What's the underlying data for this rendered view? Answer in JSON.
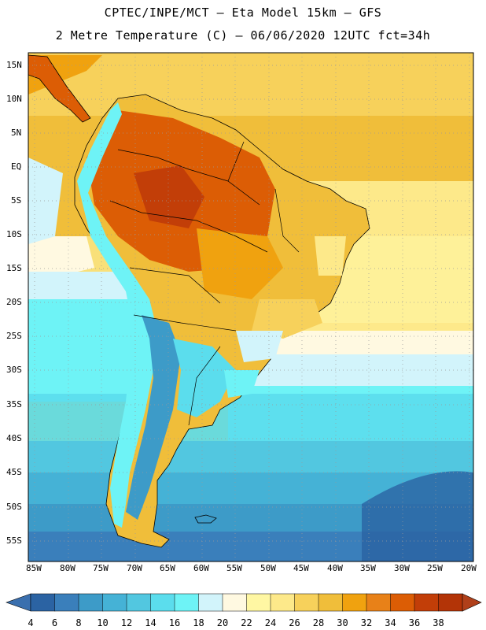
{
  "header": {
    "title_line1": "CPTEC/INPE/MCT –  Eta Model 15km – GFS",
    "title_line2": "2 Metre Temperature (C) – 06/06/2020 12UTC fct=34h"
  },
  "axes": {
    "lat_labels": [
      "15N",
      "10N",
      "5N",
      "EQ",
      "5S",
      "10S",
      "15S",
      "20S",
      "25S",
      "30S",
      "35S",
      "40S",
      "45S",
      "50S",
      "55S"
    ],
    "lon_labels": [
      "85W",
      "80W",
      "75W",
      "70W",
      "65W",
      "60W",
      "55W",
      "50W",
      "45W",
      "40W",
      "35W",
      "30W",
      "25W",
      "20W"
    ]
  },
  "colorbar": {
    "labels": [
      "4",
      "6",
      "8",
      "10",
      "12",
      "14",
      "16",
      "18",
      "20",
      "22",
      "24",
      "26",
      "28",
      "30",
      "32",
      "34",
      "36",
      "38"
    ],
    "colors": [
      "#2b63a3",
      "#3a7fbb",
      "#3d9bc8",
      "#45b2d6",
      "#52c7e0",
      "#5bdded",
      "#6ef3f6",
      "#d2f4fb",
      "#fff9e1",
      "#fff7a3",
      "#fde98a",
      "#f7d15b",
      "#f0be3a",
      "#f0a20f",
      "#e88118",
      "#dc5d05",
      "#c23e08",
      "#b33407"
    ]
  },
  "map": {
    "region": "South America",
    "variable": "2 Metre Temperature"
  }
}
